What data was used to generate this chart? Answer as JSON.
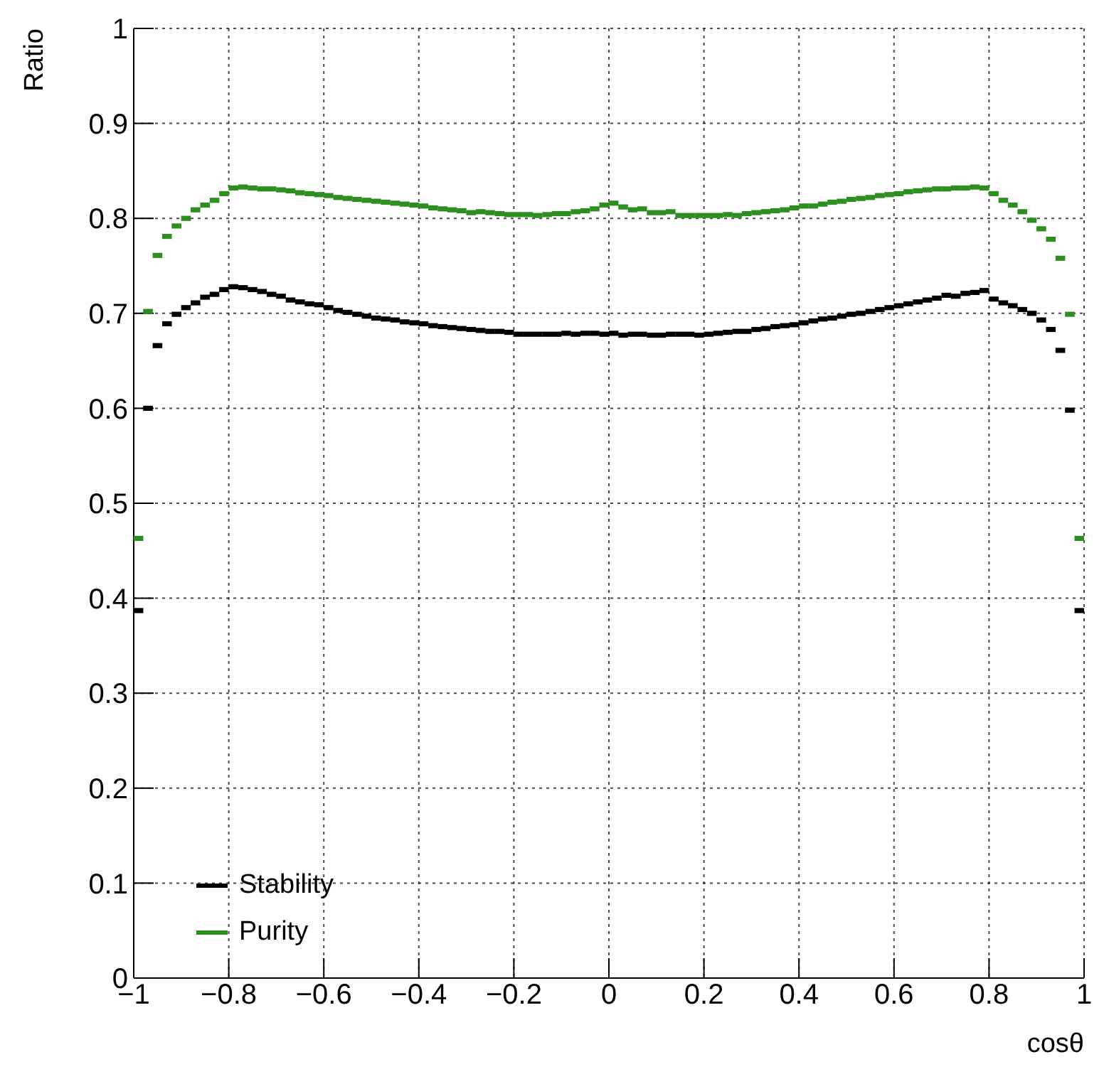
{
  "chart_data": {
    "type": "scatter",
    "xlabel": "cosθ",
    "ylabel": "Ratio",
    "x": [
      -0.99,
      -0.97,
      -0.95,
      -0.93,
      -0.91,
      -0.89,
      -0.87,
      -0.85,
      -0.83,
      -0.81,
      -0.79,
      -0.77,
      -0.75,
      -0.73,
      -0.71,
      -0.69,
      -0.67,
      -0.65,
      -0.63,
      -0.61,
      -0.59,
      -0.57,
      -0.55,
      -0.53,
      -0.51,
      -0.49,
      -0.47,
      -0.45,
      -0.43,
      -0.41,
      -0.39,
      -0.37,
      -0.35,
      -0.33,
      -0.31,
      -0.29,
      -0.27,
      -0.25,
      -0.23,
      -0.21,
      -0.19,
      -0.17,
      -0.15,
      -0.13,
      -0.11,
      -0.09,
      -0.07,
      -0.05,
      -0.03,
      -0.01,
      0.01,
      0.03,
      0.05,
      0.07,
      0.09,
      0.11,
      0.13,
      0.15,
      0.17,
      0.19,
      0.21,
      0.23,
      0.25,
      0.27,
      0.29,
      0.31,
      0.33,
      0.35,
      0.37,
      0.39,
      0.41,
      0.43,
      0.45,
      0.47,
      0.49,
      0.51,
      0.53,
      0.55,
      0.57,
      0.59,
      0.61,
      0.63,
      0.65,
      0.67,
      0.69,
      0.71,
      0.73,
      0.75,
      0.77,
      0.79,
      0.81,
      0.83,
      0.85,
      0.87,
      0.89,
      0.91,
      0.93,
      0.95,
      0.97,
      0.99
    ],
    "series": [
      {
        "name": "Stability",
        "color": "#000000",
        "values": [
          0.387,
          0.6,
          0.666,
          0.689,
          0.699,
          0.706,
          0.711,
          0.717,
          0.72,
          0.725,
          0.728,
          0.727,
          0.725,
          0.723,
          0.72,
          0.718,
          0.714,
          0.712,
          0.71,
          0.709,
          0.706,
          0.703,
          0.701,
          0.699,
          0.697,
          0.695,
          0.694,
          0.693,
          0.691,
          0.69,
          0.689,
          0.687,
          0.686,
          0.685,
          0.684,
          0.683,
          0.682,
          0.681,
          0.681,
          0.68,
          0.678,
          0.678,
          0.678,
          0.678,
          0.678,
          0.679,
          0.678,
          0.679,
          0.679,
          0.678,
          0.679,
          0.677,
          0.678,
          0.678,
          0.677,
          0.677,
          0.678,
          0.678,
          0.678,
          0.677,
          0.678,
          0.679,
          0.68,
          0.681,
          0.681,
          0.683,
          0.684,
          0.686,
          0.687,
          0.688,
          0.69,
          0.692,
          0.694,
          0.695,
          0.697,
          0.699,
          0.7,
          0.702,
          0.704,
          0.706,
          0.708,
          0.71,
          0.712,
          0.714,
          0.716,
          0.719,
          0.718,
          0.721,
          0.722,
          0.724,
          0.715,
          0.711,
          0.708,
          0.704,
          0.7,
          0.693,
          0.683,
          0.661,
          0.598,
          0.387
        ]
      },
      {
        "name": "Purity",
        "color": "#2d8f1f",
        "values": [
          0.463,
          0.702,
          0.761,
          0.781,
          0.792,
          0.8,
          0.809,
          0.814,
          0.819,
          0.826,
          0.832,
          0.833,
          0.832,
          0.831,
          0.831,
          0.83,
          0.829,
          0.827,
          0.826,
          0.825,
          0.824,
          0.822,
          0.821,
          0.82,
          0.819,
          0.818,
          0.817,
          0.816,
          0.815,
          0.814,
          0.813,
          0.811,
          0.81,
          0.809,
          0.808,
          0.806,
          0.807,
          0.806,
          0.805,
          0.804,
          0.804,
          0.804,
          0.803,
          0.804,
          0.805,
          0.805,
          0.807,
          0.808,
          0.81,
          0.814,
          0.816,
          0.812,
          0.809,
          0.81,
          0.806,
          0.806,
          0.807,
          0.803,
          0.803,
          0.803,
          0.803,
          0.803,
          0.804,
          0.803,
          0.805,
          0.806,
          0.807,
          0.808,
          0.809,
          0.811,
          0.813,
          0.813,
          0.815,
          0.817,
          0.818,
          0.82,
          0.821,
          0.822,
          0.824,
          0.825,
          0.826,
          0.828,
          0.829,
          0.83,
          0.831,
          0.831,
          0.832,
          0.832,
          0.833,
          0.832,
          0.826,
          0.819,
          0.814,
          0.807,
          0.798,
          0.789,
          0.778,
          0.758,
          0.699,
          0.463
        ]
      }
    ],
    "xlim": [
      -1,
      1
    ],
    "xticks": [
      {
        "value": -1,
        "label": "−1"
      },
      {
        "value": -0.8,
        "label": "−0.8"
      },
      {
        "value": -0.6,
        "label": "−0.6"
      },
      {
        "value": -0.4,
        "label": "−0.4"
      },
      {
        "value": -0.2,
        "label": "−0.2"
      },
      0,
      0.2,
      0.4,
      0.6,
      0.8,
      1
    ],
    "ylim": [
      0,
      1
    ],
    "yticks": [
      0,
      0.1,
      0.2,
      0.3,
      0.4,
      0.5,
      0.6,
      0.7,
      0.8,
      0.9,
      1
    ],
    "grid": true,
    "legend": "bottom left",
    "marker": "square"
  }
}
